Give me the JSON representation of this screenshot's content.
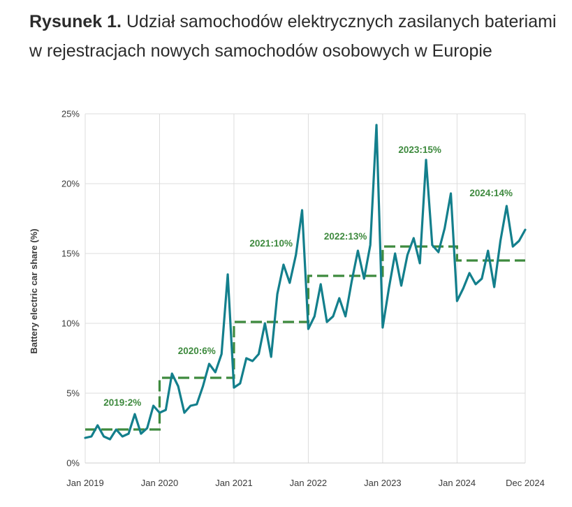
{
  "title": {
    "prefix": "Rysunek 1.",
    "text": "Udział samochodów elektrycznych zasilanych bateriami w rejestracjach nowych samochodów osobowych w Europie"
  },
  "chart_data": {
    "type": "line",
    "ylabel": "Battery electric car share (%)",
    "ylim": [
      0,
      25
    ],
    "yticks": [
      {
        "value": 0,
        "label": "0%"
      },
      {
        "value": 5,
        "label": "5%"
      },
      {
        "value": 10,
        "label": "10%"
      },
      {
        "value": 15,
        "label": "15%"
      },
      {
        "value": 20,
        "label": "20%"
      },
      {
        "value": 25,
        "label": "25%"
      }
    ],
    "xrange": [
      0,
      71
    ],
    "xticks": [
      {
        "value": 0,
        "label": "Jan 2019"
      },
      {
        "value": 12,
        "label": "Jan 2020"
      },
      {
        "value": 24,
        "label": "Jan 2021"
      },
      {
        "value": 36,
        "label": "Jan 2022"
      },
      {
        "value": 48,
        "label": "Jan 2023"
      },
      {
        "value": 60,
        "label": "Jan 2024"
      },
      {
        "value": 71,
        "label": "Dec 2024"
      }
    ],
    "grid": {
      "horizontal": true,
      "vertical": true
    },
    "series": [
      {
        "color": "#137f8c",
        "values": [
          1.8,
          1.9,
          2.7,
          1.9,
          1.7,
          2.4,
          1.9,
          2.1,
          3.5,
          2.1,
          2.5,
          4.1,
          3.6,
          3.8,
          6.4,
          5.5,
          3.6,
          4.1,
          4.2,
          5.5,
          7.1,
          6.5,
          7.8,
          13.5,
          5.4,
          5.7,
          7.5,
          7.3,
          7.8,
          10.0,
          7.6,
          12.1,
          14.2,
          12.9,
          14.9,
          18.1,
          9.6,
          10.5,
          12.8,
          10.1,
          10.5,
          11.8,
          10.5,
          13.0,
          15.2,
          13.2,
          15.6,
          24.2,
          9.7,
          12.5,
          15.0,
          12.7,
          14.9,
          16.1,
          14.3,
          21.7,
          15.6,
          15.1,
          16.8,
          19.3,
          11.6,
          12.5,
          13.6,
          12.8,
          13.2,
          15.2,
          12.6,
          15.9,
          18.4,
          15.5,
          15.9,
          16.7
        ]
      }
    ],
    "annual_averages": {
      "color": "#3e8a3e",
      "style": "dashed",
      "values": [
        {
          "start": 0,
          "end": 12,
          "value": 2.4,
          "label": "2019:2%"
        },
        {
          "start": 12,
          "end": 24,
          "value": 6.1,
          "label": "2020:6%"
        },
        {
          "start": 24,
          "end": 36,
          "value": 10.1,
          "label": "2021:10%"
        },
        {
          "start": 36,
          "end": 48,
          "value": 13.4,
          "label": "2022:13%"
        },
        {
          "start": 48,
          "end": 60,
          "value": 15.5,
          "label": "2023:15%"
        },
        {
          "start": 60,
          "end": 71,
          "value": 14.5,
          "label": "2024:14%"
        }
      ]
    }
  }
}
